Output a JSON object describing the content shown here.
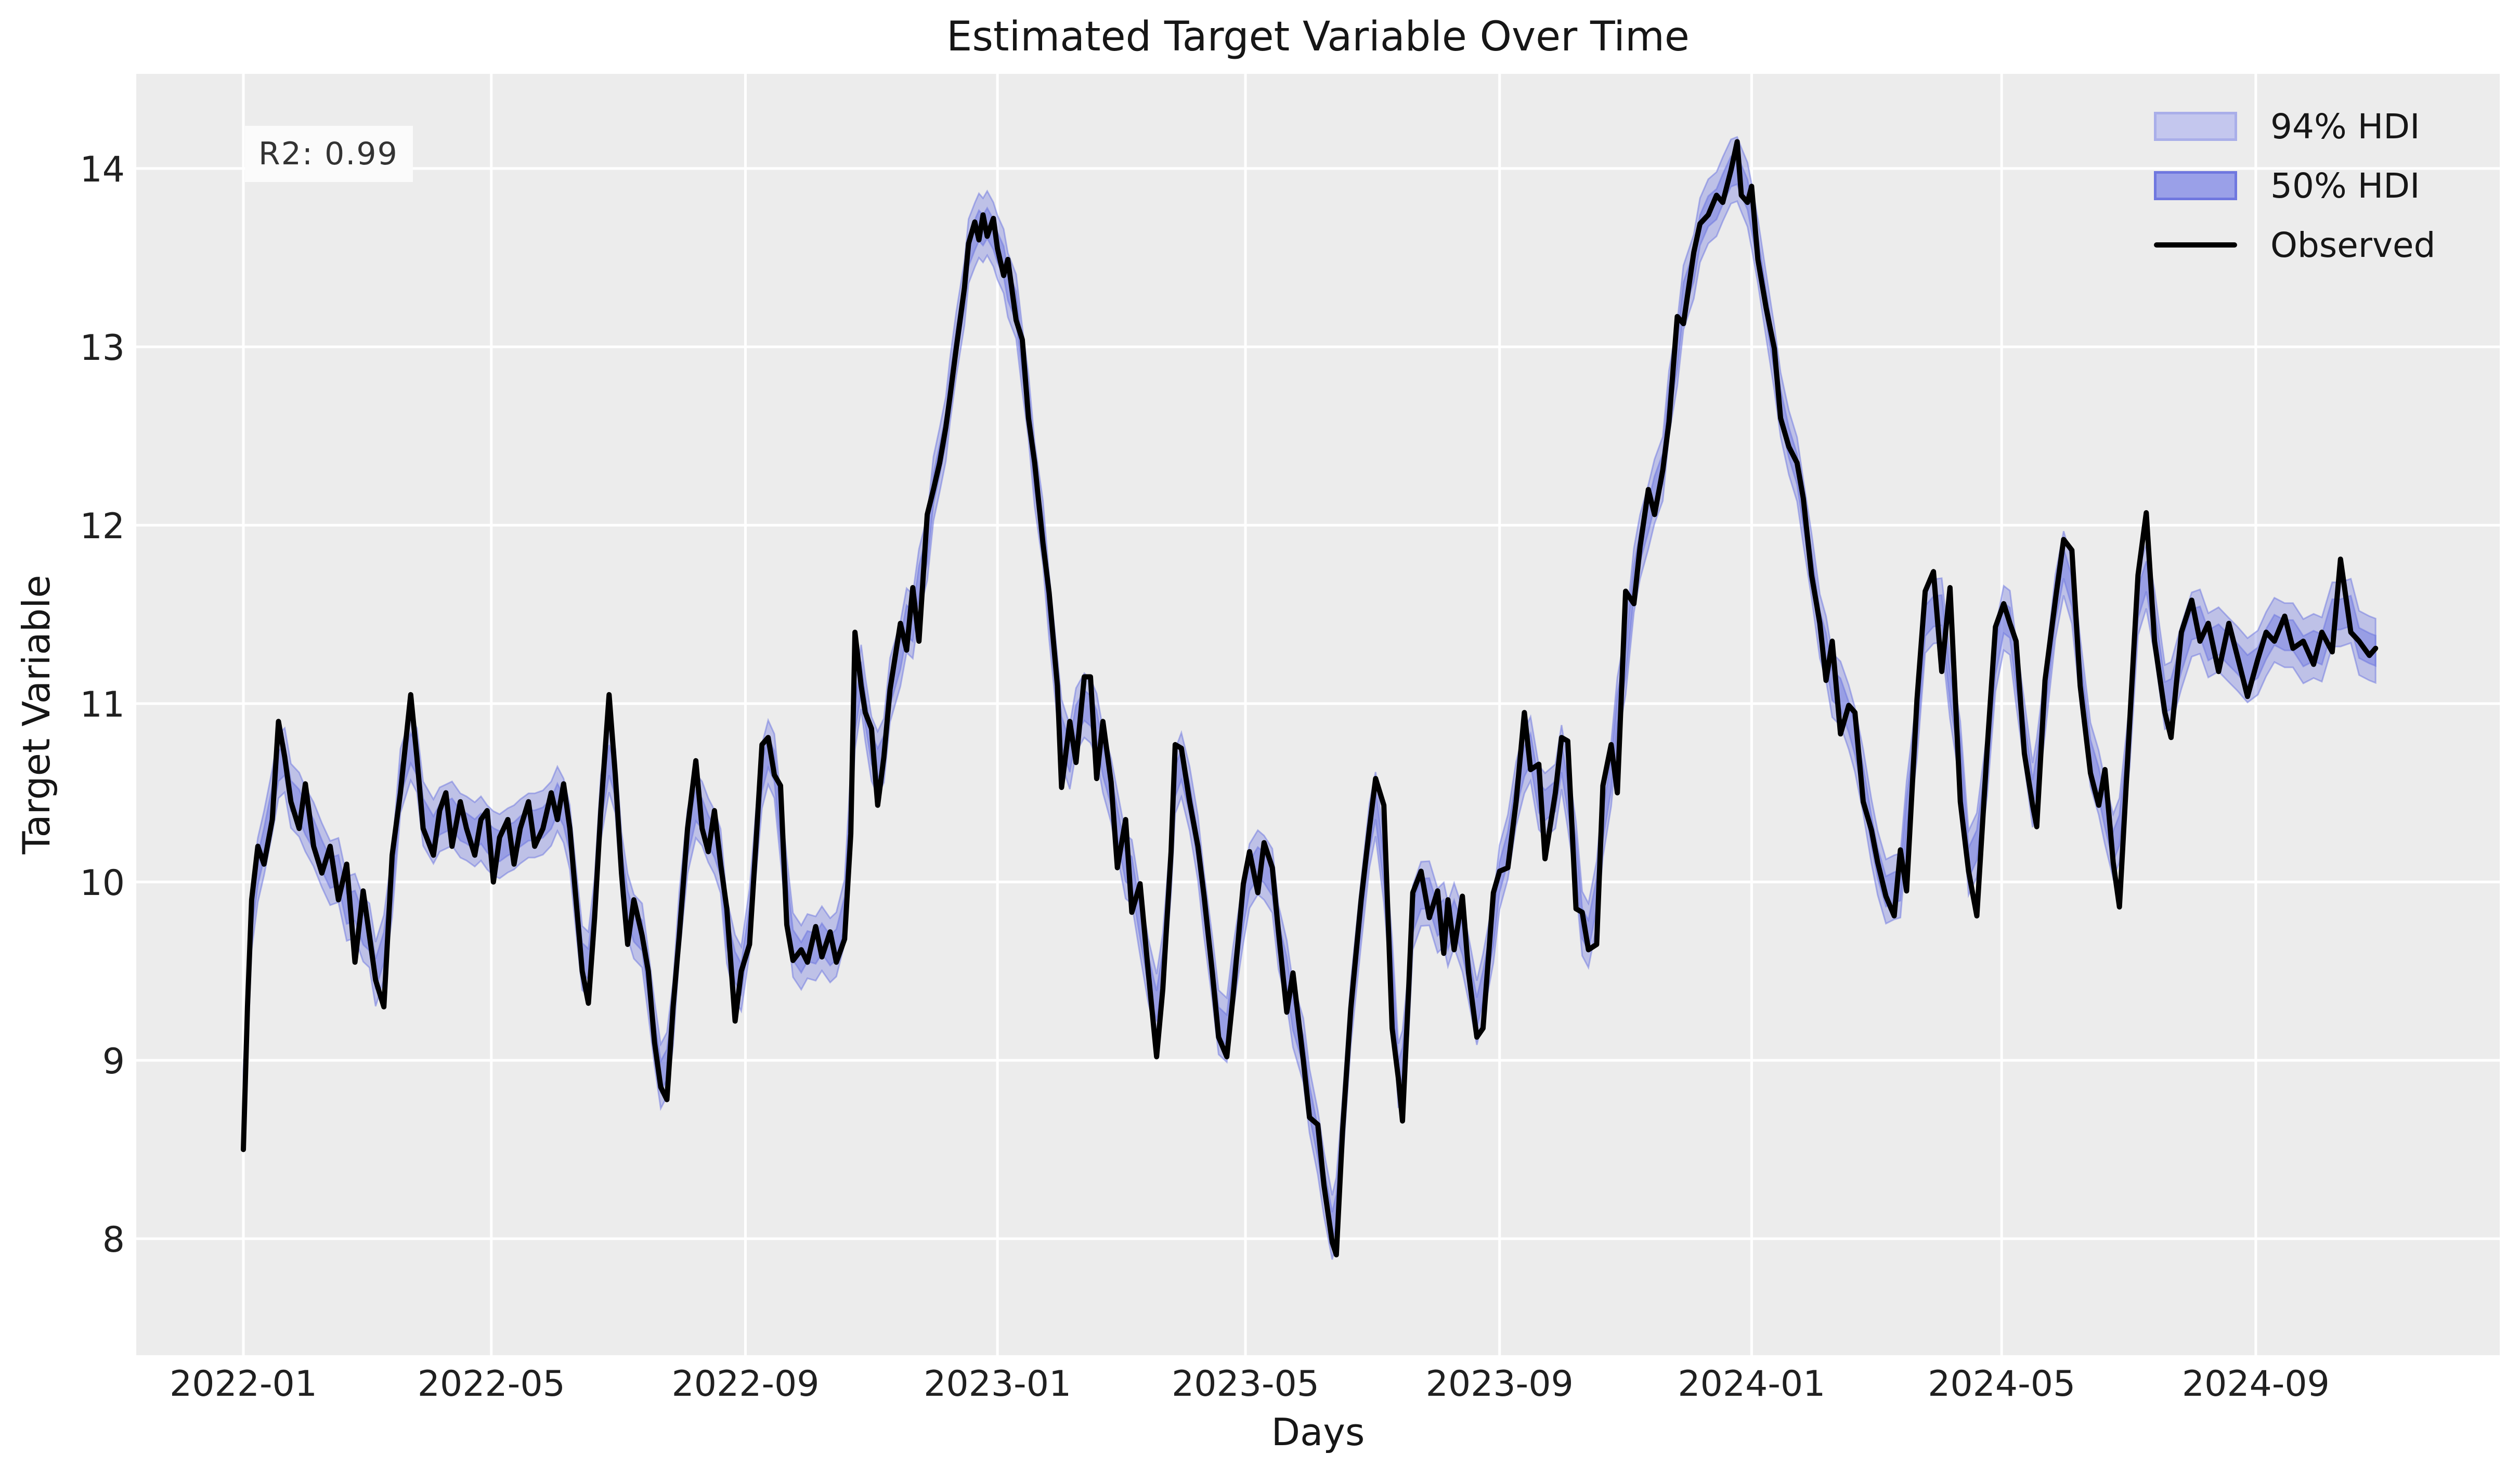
{
  "chart_data": {
    "type": "line",
    "title": "Estimated Target Variable Over Time",
    "xlabel": "Days",
    "ylabel": "Target Variable",
    "annotation": "R2: 0.99",
    "legend": [
      {
        "label": "94% HDI",
        "fill": "#c4c7ee",
        "border": "#a9aee9"
      },
      {
        "label": "50% HDI",
        "fill": "#9aa0e8",
        "border": "#6f77df"
      },
      {
        "label": "Observed",
        "color": "#000000"
      }
    ],
    "colors": {
      "axes_background": "#ececec",
      "grid": "#ffffff",
      "observed_line": "#000000",
      "hdi_base": "#6a74e0"
    },
    "y_ticks": [
      8,
      9,
      10,
      11,
      12,
      13,
      14
    ],
    "x_ticks": [
      {
        "label": "2022-01",
        "day": 0
      },
      {
        "label": "2022-05",
        "day": 120
      },
      {
        "label": "2022-09",
        "day": 243
      },
      {
        "label": "2023-01",
        "day": 365
      },
      {
        "label": "2023-05",
        "day": 485
      },
      {
        "label": "2023-09",
        "day": 608
      },
      {
        "label": "2024-01",
        "day": 730
      },
      {
        "label": "2024-05",
        "day": 851
      },
      {
        "label": "2024-09",
        "day": 974
      }
    ],
    "ylim": [
      7.35,
      14.53
    ],
    "xlim_days": [
      -52,
      1092
    ],
    "hdi94_halfwidth": 0.18,
    "hdi50_halfwidth": 0.085,
    "series": {
      "days": [
        0,
        2,
        4,
        7,
        10,
        14,
        17,
        20,
        23,
        27,
        30,
        34,
        38,
        42,
        46,
        50,
        54,
        58,
        61,
        64,
        68,
        72,
        76,
        81,
        84,
        87,
        92,
        95,
        98,
        101,
        105,
        108,
        112,
        115,
        118,
        121,
        124,
        128,
        131,
        134,
        138,
        141,
        145,
        149,
        152,
        155,
        158,
        161,
        164,
        167,
        170,
        173,
        177,
        180,
        183,
        186,
        189,
        193,
        196,
        199,
        202,
        205,
        208,
        211,
        215,
        219,
        222,
        225,
        228,
        231,
        234,
        238,
        241,
        245,
        248,
        251,
        254,
        257,
        260,
        263,
        266,
        270,
        273,
        277,
        280,
        284,
        287,
        291,
        294,
        296,
        299,
        301,
        304,
        307,
        310,
        313,
        318,
        321,
        324,
        327,
        331,
        334,
        337,
        340,
        342,
        345,
        349,
        351,
        354,
        356,
        358,
        360,
        363,
        365,
        368,
        370,
        374,
        377,
        380,
        383,
        387,
        390,
        394,
        396,
        400,
        403,
        407,
        410,
        413,
        416,
        420,
        423,
        427,
        430,
        434,
        438,
        442,
        445,
        449,
        451,
        454,
        458,
        462,
        465,
        469,
        472,
        476,
        479,
        484,
        487,
        491,
        494,
        498,
        501,
        505,
        508,
        513,
        516,
        520,
        523,
        527,
        529,
        532,
        536,
        541,
        545,
        548,
        552,
        556,
        559,
        561,
        564,
        566,
        570,
        574,
        578,
        581,
        583,
        586,
        590,
        593,
        597,
        600,
        605,
        608,
        612,
        616,
        620,
        623,
        627,
        630,
        635,
        638,
        641,
        645,
        648,
        651,
        655,
        658,
        662,
        665,
        669,
        673,
        676,
        680,
        683,
        687,
        690,
        694,
        697,
        702,
        705,
        709,
        713,
        716,
        720,
        723,
        725,
        728,
        730,
        733,
        737,
        741,
        744,
        748,
        752,
        755,
        759,
        763,
        766,
        769,
        773,
        777,
        780,
        784,
        788,
        791,
        795,
        799,
        802,
        805,
        810,
        814,
        818,
        822,
        826,
        831,
        835,
        839,
        844,
        848,
        852,
        855,
        858,
        862,
        866,
        868,
        872,
        877,
        881,
        885,
        889,
        894,
        898,
        901,
        905,
        908,
        913,
        917,
        921,
        925,
        930,
        933,
        938,
        943,
        947,
        951,
        956,
        961,
        965,
        970,
        975,
        979,
        983,
        988,
        992,
        997,
        1002,
        1006,
        1011,
        1015,
        1020,
        1024,
        1029,
        1032
      ],
      "observed": [
        8.5,
        9.3,
        9.9,
        10.2,
        10.1,
        10.35,
        10.9,
        10.7,
        10.45,
        10.3,
        10.55,
        10.2,
        10.05,
        10.2,
        9.9,
        10.1,
        9.55,
        9.95,
        9.7,
        9.45,
        9.3,
        10.15,
        10.5,
        11.05,
        10.7,
        10.3,
        10.15,
        10.4,
        10.5,
        10.2,
        10.45,
        10.3,
        10.15,
        10.35,
        10.4,
        10.0,
        10.25,
        10.35,
        10.1,
        10.3,
        10.45,
        10.2,
        10.3,
        10.5,
        10.35,
        10.55,
        10.3,
        9.9,
        9.5,
        9.32,
        9.8,
        10.4,
        11.05,
        10.6,
        10.05,
        9.65,
        9.9,
        9.7,
        9.5,
        9.1,
        8.85,
        8.78,
        9.3,
        9.7,
        10.3,
        10.68,
        10.3,
        10.17,
        10.4,
        10.1,
        9.85,
        9.22,
        9.5,
        9.65,
        10.2,
        10.77,
        10.81,
        10.6,
        10.54,
        9.76,
        9.56,
        9.62,
        9.55,
        9.75,
        9.58,
        9.72,
        9.55,
        9.68,
        10.27,
        11.4,
        11.1,
        10.95,
        10.86,
        10.43,
        10.7,
        11.08,
        11.45,
        11.3,
        11.65,
        11.35,
        12.06,
        12.2,
        12.35,
        12.55,
        12.72,
        12.99,
        13.33,
        13.58,
        13.7,
        13.6,
        13.74,
        13.62,
        13.72,
        13.55,
        13.4,
        13.49,
        13.15,
        13.04,
        12.6,
        12.35,
        11.9,
        11.62,
        11.1,
        10.53,
        10.9,
        10.67,
        11.15,
        11.15,
        10.58,
        10.9,
        10.56,
        10.08,
        10.35,
        9.83,
        9.99,
        9.49,
        9.02,
        9.4,
        10.17,
        10.77,
        10.75,
        10.45,
        10.2,
        9.92,
        9.49,
        9.13,
        9.02,
        9.36,
        9.99,
        10.17,
        9.94,
        10.22,
        10.08,
        9.72,
        9.27,
        9.49,
        9.0,
        8.68,
        8.64,
        8.3,
        7.98,
        7.91,
        8.6,
        9.29,
        9.9,
        10.3,
        10.58,
        10.43,
        9.18,
        8.9,
        8.66,
        9.4,
        9.94,
        10.06,
        9.8,
        9.95,
        9.6,
        9.9,
        9.62,
        9.92,
        9.49,
        9.13,
        9.18,
        9.94,
        10.06,
        10.08,
        10.45,
        10.95,
        10.63,
        10.66,
        10.13,
        10.5,
        10.81,
        10.79,
        9.85,
        9.83,
        9.62,
        9.65,
        10.54,
        10.77,
        10.5,
        11.63,
        11.56,
        11.88,
        12.2,
        12.06,
        12.31,
        12.58,
        13.17,
        13.13,
        13.53,
        13.69,
        13.74,
        13.85,
        13.81,
        13.99,
        14.15,
        13.85,
        13.81,
        13.9,
        13.49,
        13.22,
        12.99,
        12.6,
        12.44,
        12.35,
        12.15,
        11.72,
        11.45,
        11.13,
        11.35,
        10.83,
        10.99,
        10.95,
        10.45,
        10.29,
        10.11,
        9.92,
        9.81,
        10.18,
        9.95,
        11.02,
        11.63,
        11.74,
        11.18,
        11.65,
        10.45,
        10.06,
        9.81,
        10.75,
        11.43,
        11.56,
        11.45,
        11.35,
        10.72,
        10.43,
        10.31,
        11.13,
        11.58,
        11.92,
        11.86,
        11.1,
        10.61,
        10.43,
        10.63,
        10.11,
        9.86,
        10.9,
        11.72,
        12.07,
        11.35,
        10.95,
        10.81,
        11.4,
        11.58,
        11.35,
        11.45,
        11.18,
        11.45,
        11.27,
        11.04,
        11.25,
        11.4,
        11.35,
        11.49,
        11.31,
        11.35,
        11.22,
        11.4,
        11.29,
        11.81,
        11.4,
        11.35,
        11.27,
        11.31
      ]
    }
  }
}
